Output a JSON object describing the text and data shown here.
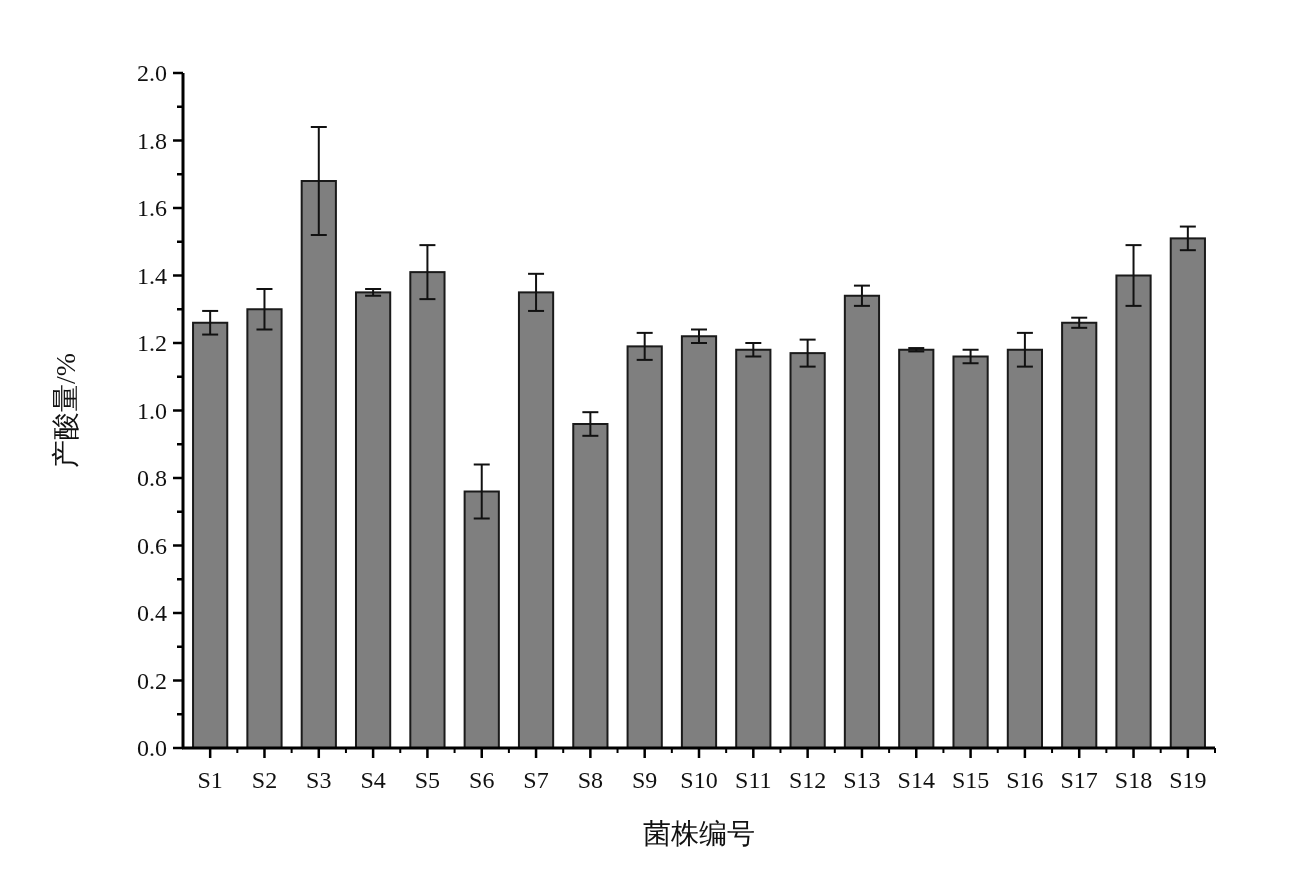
{
  "chart_data": {
    "type": "bar",
    "xlabel": "菌株编号",
    "ylabel": "产酸量/%",
    "categories": [
      "S1",
      "S2",
      "S3",
      "S4",
      "S5",
      "S6",
      "S7",
      "S8",
      "S9",
      "S10",
      "S11",
      "S12",
      "S13",
      "S14",
      "S15",
      "S16",
      "S17",
      "S18",
      "S19"
    ],
    "values": [
      1.26,
      1.3,
      1.68,
      1.35,
      1.41,
      0.76,
      1.35,
      0.96,
      1.19,
      1.22,
      1.18,
      1.17,
      1.34,
      1.18,
      1.16,
      1.18,
      1.26,
      1.4,
      1.51
    ],
    "errors": [
      0.035,
      0.06,
      0.16,
      0.01,
      0.08,
      0.08,
      0.055,
      0.035,
      0.04,
      0.02,
      0.02,
      0.04,
      0.03,
      0.005,
      0.02,
      0.05,
      0.015,
      0.09,
      0.035
    ],
    "color": "#7f7f7f",
    "ylim": [
      0,
      2.0
    ],
    "yticks": [
      {
        "value": 0,
        "label": "0.0"
      },
      {
        "value": 0.1,
        "label": null
      },
      {
        "value": 0.2,
        "label": "0.2"
      },
      {
        "value": 0.3,
        "label": null
      },
      {
        "value": 0.4,
        "label": "0.4"
      },
      {
        "value": 0.5,
        "label": null
      },
      {
        "value": 0.6,
        "label": "0.6"
      },
      {
        "value": 0.7,
        "label": null
      },
      {
        "value": 0.8,
        "label": "0.8"
      },
      {
        "value": 0.9,
        "label": null
      },
      {
        "value": 1.0,
        "label": "1.0"
      },
      {
        "value": 1.1,
        "label": null
      },
      {
        "value": 1.2,
        "label": "1.2"
      },
      {
        "value": 1.3,
        "label": null
      },
      {
        "value": 1.4,
        "label": "1.4"
      },
      {
        "value": 1.5,
        "label": null
      },
      {
        "value": 1.6,
        "label": "1.6"
      },
      {
        "value": 1.7,
        "label": null
      },
      {
        "value": 1.8,
        "label": "1.8"
      },
      {
        "value": 1.9,
        "label": null
      },
      {
        "value": 2.0,
        "label": "2.0"
      }
    ]
  }
}
